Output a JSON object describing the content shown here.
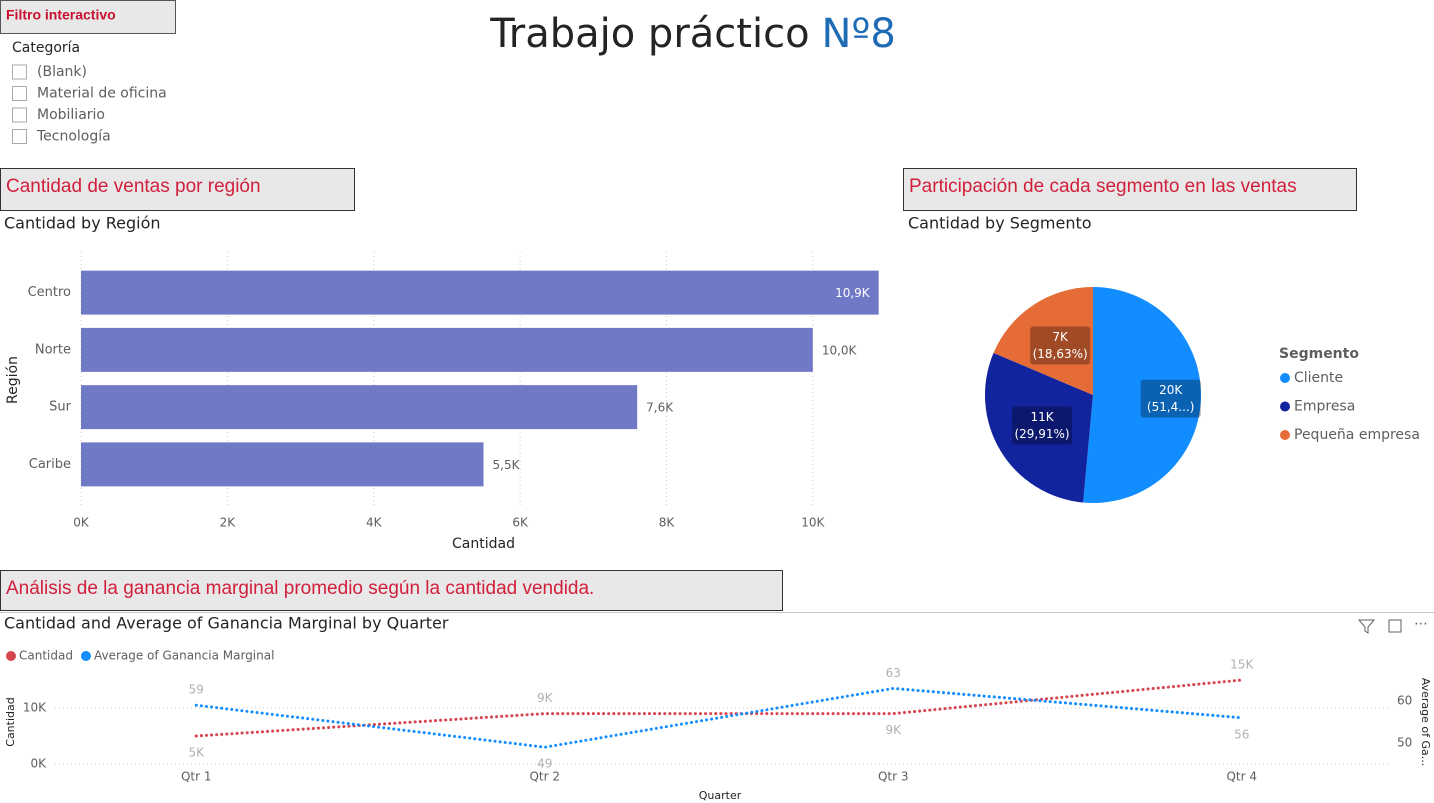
{
  "header": {
    "title": "Trabajo práctico",
    "title_number": "Nº8"
  },
  "filter": {
    "button": "Filtro interactivo",
    "field": "Categoría",
    "options": [
      "(Blank)",
      "Material de oficina",
      "Mobiliario",
      "Tecnología"
    ]
  },
  "sections": [
    "Cantidad de ventas por región",
    "Participación de cada segmento en las ventas",
    "Análisis de la ganancia marginal promedio según la cantidad vendida."
  ],
  "chart_data": [
    {
      "type": "bar",
      "orientation": "horizontal",
      "title": "Cantidad by Región",
      "categories": [
        "Centro",
        "Norte",
        "Sur",
        "Caribe"
      ],
      "values": [
        10900,
        10000,
        7600,
        5500
      ],
      "value_labels": [
        "10,9K",
        "10,0K",
        "7,6K",
        "5,5K"
      ],
      "color": "#7079c6",
      "xlim": [
        0,
        11000
      ],
      "xticks": [
        {
          "value": 0,
          "label": "0K"
        },
        {
          "value": 2000,
          "label": "2K"
        },
        {
          "value": 4000,
          "label": "4K"
        },
        {
          "value": 6000,
          "label": "6K"
        },
        {
          "value": 8000,
          "label": "8K"
        },
        {
          "value": 10000,
          "label": "10K"
        }
      ],
      "x_label": "Cantidad",
      "y_label": "Región",
      "grid": true
    },
    {
      "type": "pie",
      "title": "Cantidad by Segmento",
      "categories": [
        "Cliente",
        "Empresa",
        "Pequeña empresa"
      ],
      "values": [
        19555,
        11366,
        7079
      ],
      "value_labels": [
        "20K",
        "11K",
        "7K"
      ],
      "percent_labels": [
        "(51,4...)",
        "(29,91%)",
        "(18,63%)"
      ],
      "colors": [
        "#118dff",
        "#12239e",
        "#e66c37"
      ],
      "legend_title": "Segmento",
      "legend": "right"
    },
    {
      "type": "line",
      "title": "Cantidad and Average of Ganancia Marginal by Quarter",
      "categories": [
        "Qtr 1",
        "Qtr 2",
        "Qtr 3",
        "Qtr 4"
      ],
      "series": [
        {
          "name": "Cantidad",
          "color": "#d64550",
          "values": [
            5000,
            9000,
            9000,
            15000
          ],
          "value_labels": [
            "5K",
            "9K",
            "9K",
            "15K"
          ]
        },
        {
          "name": "Average of Ganancia Marginal",
          "color": "#118dff",
          "axis": "y2",
          "values": [
            59,
            49,
            63,
            56
          ]
        }
      ],
      "ylim": [
        0,
        15000
      ],
      "yticks": [
        {
          "value": 0,
          "label": "0K"
        },
        {
          "value": 10000,
          "label": "10K"
        }
      ],
      "y2lim": [
        45,
        65
      ],
      "y2ticks": [
        50,
        60
      ],
      "x_label": "Quarter",
      "y_label": "Cantidad",
      "y2_label": "Average of Ga...",
      "grid": true,
      "legend": "top-left",
      "line_style": "dotted"
    }
  ]
}
